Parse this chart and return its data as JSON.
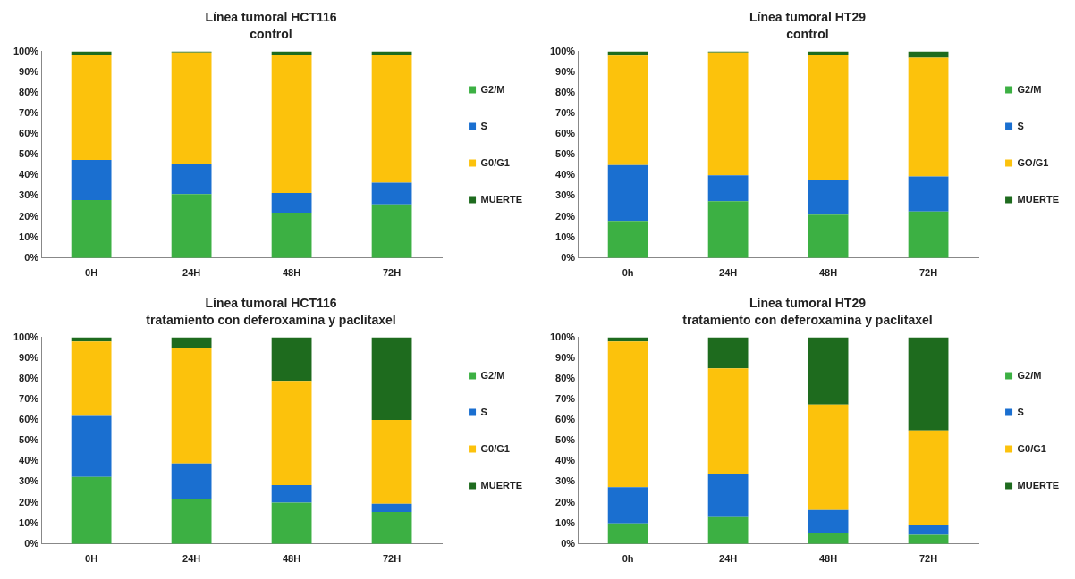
{
  "chart_data": [
    {
      "type": "bar",
      "stacked": true,
      "title": "Línea tumoral HCT116",
      "subtitle": "control",
      "categories": [
        "0H",
        "24H",
        "48H",
        "72H"
      ],
      "ylim": [
        0,
        100
      ],
      "yticks": [
        {
          "value": 0,
          "label": "0%"
        },
        {
          "value": 10,
          "label": "10%"
        },
        {
          "value": 20,
          "label": "20%"
        },
        {
          "value": 30,
          "label": "30%"
        },
        {
          "value": 40,
          "label": "40%"
        },
        {
          "value": 50,
          "label": "50%"
        },
        {
          "value": 60,
          "label": "60%"
        },
        {
          "value": 70,
          "label": "70%"
        },
        {
          "value": 80,
          "label": "80%"
        },
        {
          "value": 90,
          "label": "90%"
        },
        {
          "value": 100,
          "label": "100%"
        }
      ],
      "grid": false,
      "legend": "right",
      "series": [
        {
          "name": "G2/M",
          "color": "#3cb043",
          "values": [
            28,
            31,
            22,
            26
          ]
        },
        {
          "name": "S",
          "color": "#1a6fd0",
          "values": [
            19.5,
            14.5,
            9.5,
            10.5
          ]
        },
        {
          "name": "G0/G1",
          "color": "#fcc20c",
          "values": [
            51,
            54,
            67,
            62
          ]
        },
        {
          "name": "MUERTE",
          "color": "#1e6b1e",
          "values": [
            1.5,
            0.5,
            1.5,
            1.5
          ]
        }
      ]
    },
    {
      "type": "bar",
      "stacked": true,
      "title": "Línea tumoral HT29",
      "subtitle": "control",
      "categories": [
        "0h",
        "24H",
        "48H",
        "72H"
      ],
      "ylim": [
        0,
        100
      ],
      "yticks": [
        {
          "value": 0,
          "label": "0%"
        },
        {
          "value": 10,
          "label": "10%"
        },
        {
          "value": 20,
          "label": "20%"
        },
        {
          "value": 30,
          "label": "30%"
        },
        {
          "value": 40,
          "label": "40%"
        },
        {
          "value": 50,
          "label": "50%"
        },
        {
          "value": 60,
          "label": "60%"
        },
        {
          "value": 70,
          "label": "70%"
        },
        {
          "value": 80,
          "label": "80%"
        },
        {
          "value": 90,
          "label": "90%"
        },
        {
          "value": 100,
          "label": "100%"
        }
      ],
      "grid": false,
      "legend": "right",
      "series": [
        {
          "name": "G2/M",
          "color": "#3cb043",
          "values": [
            18,
            27.5,
            21,
            22.5
          ]
        },
        {
          "name": "S",
          "color": "#1a6fd0",
          "values": [
            27,
            12.5,
            16.5,
            17
          ]
        },
        {
          "name": "GO/G1",
          "color": "#fcc20c",
          "values": [
            53,
            59.5,
            61,
            57.5
          ]
        },
        {
          "name": "MUERTE",
          "color": "#1e6b1e",
          "values": [
            2,
            0.5,
            1.5,
            3
          ]
        }
      ]
    },
    {
      "type": "bar",
      "stacked": true,
      "title": "Línea tumoral HCT116",
      "subtitle": "tratamiento con deferoxamina y paclitaxel",
      "categories": [
        "0H",
        "24H",
        "48H",
        "72H"
      ],
      "ylim": [
        0,
        100
      ],
      "yticks": [
        {
          "value": 0,
          "label": "0%"
        },
        {
          "value": 10,
          "label": "10%"
        },
        {
          "value": 20,
          "label": "20%"
        },
        {
          "value": 30,
          "label": "30%"
        },
        {
          "value": 40,
          "label": "40%"
        },
        {
          "value": 50,
          "label": "50%"
        },
        {
          "value": 60,
          "label": "60%"
        },
        {
          "value": 70,
          "label": "70%"
        },
        {
          "value": 80,
          "label": "80%"
        },
        {
          "value": 90,
          "label": "90%"
        },
        {
          "value": 100,
          "label": "100%"
        }
      ],
      "grid": false,
      "legend": "right",
      "series": [
        {
          "name": "G2/M",
          "color": "#3cb043",
          "values": [
            32.5,
            21.5,
            20,
            15.5
          ]
        },
        {
          "name": "S",
          "color": "#1a6fd0",
          "values": [
            29.5,
            17.5,
            8.5,
            4
          ]
        },
        {
          "name": "G0/G1",
          "color": "#fcc20c",
          "values": [
            36,
            56,
            50.5,
            40.5
          ]
        },
        {
          "name": "MUERTE",
          "color": "#1e6b1e",
          "values": [
            2,
            5,
            21,
            40
          ]
        }
      ]
    },
    {
      "type": "bar",
      "stacked": true,
      "title": "Línea tumoral HT29",
      "subtitle": "tratamiento con deferoxamina y paclitaxel",
      "categories": [
        "0h",
        "24H",
        "48H",
        "72H"
      ],
      "ylim": [
        0,
        100
      ],
      "yticks": [
        {
          "value": 0,
          "label": "0%"
        },
        {
          "value": 10,
          "label": "10%"
        },
        {
          "value": 20,
          "label": "20%"
        },
        {
          "value": 30,
          "label": "30%"
        },
        {
          "value": 40,
          "label": "40%"
        },
        {
          "value": 50,
          "label": "50%"
        },
        {
          "value": 60,
          "label": "60%"
        },
        {
          "value": 70,
          "label": "70%"
        },
        {
          "value": 80,
          "label": "80%"
        },
        {
          "value": 90,
          "label": "90%"
        },
        {
          "value": 100,
          "label": "100%"
        }
      ],
      "grid": false,
      "legend": "right",
      "series": [
        {
          "name": "G2/M",
          "color": "#3cb043",
          "values": [
            10,
            13,
            5.5,
            4.5
          ]
        },
        {
          "name": "S",
          "color": "#1a6fd0",
          "values": [
            17.5,
            21,
            11,
            4.5
          ]
        },
        {
          "name": "G0/G1",
          "color": "#fcc20c",
          "values": [
            70.5,
            51,
            51,
            46
          ]
        },
        {
          "name": "MUERTE",
          "color": "#1e6b1e",
          "values": [
            2,
            15,
            32.5,
            45
          ]
        }
      ]
    }
  ]
}
